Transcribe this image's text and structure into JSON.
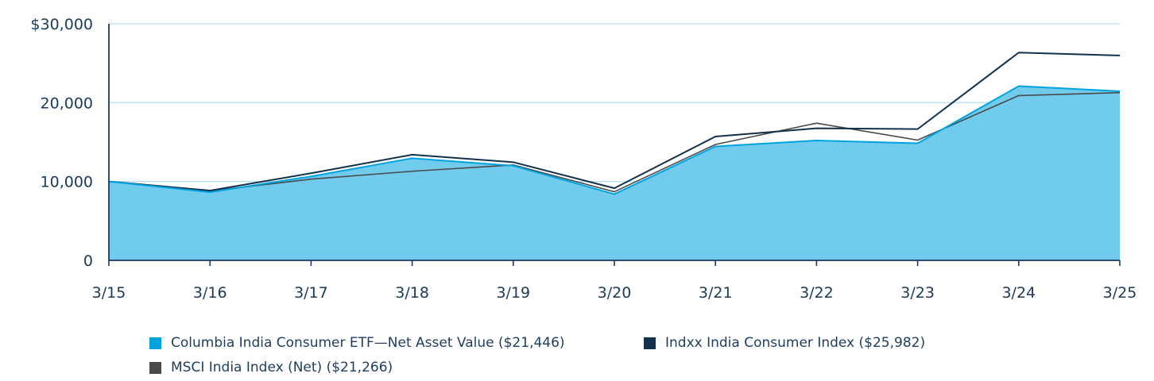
{
  "chart_data": {
    "type": "area",
    "categories": [
      "3/15",
      "3/16",
      "3/17",
      "3/18",
      "3/19",
      "3/20",
      "3/21",
      "3/22",
      "3/23",
      "3/24",
      "3/25"
    ],
    "ylim": [
      0,
      30000
    ],
    "y_ticks": [
      {
        "value": 0,
        "label": "0"
      },
      {
        "value": 10000,
        "label": "10,000"
      },
      {
        "value": 20000,
        "label": "20,000"
      },
      {
        "value": 30000,
        "label": "$30,000"
      }
    ],
    "grid": true,
    "legend_position": "bottom",
    "series": [
      {
        "name": "Columbia India Consumer ETF—Net Asset Value ($21,446)",
        "type": "area",
        "color": "#00a3e0",
        "fill": "#71cbec",
        "values": [
          10000,
          8650,
          10650,
          12950,
          12000,
          8400,
          14450,
          15200,
          14850,
          22100,
          21446
        ]
      },
      {
        "name": "Indxx India Consumer Index ($25,982)",
        "type": "line",
        "color": "#13314b",
        "values": [
          10000,
          8850,
          11050,
          13400,
          12450,
          9150,
          15700,
          16750,
          16650,
          26350,
          25982
        ]
      },
      {
        "name": "MSCI India Index (Net) ($21,266)",
        "type": "line",
        "color": "#4a4a4a",
        "values": [
          10000,
          8800,
          10300,
          11300,
          12100,
          8700,
          14700,
          17400,
          15250,
          20900,
          21266
        ]
      }
    ]
  }
}
